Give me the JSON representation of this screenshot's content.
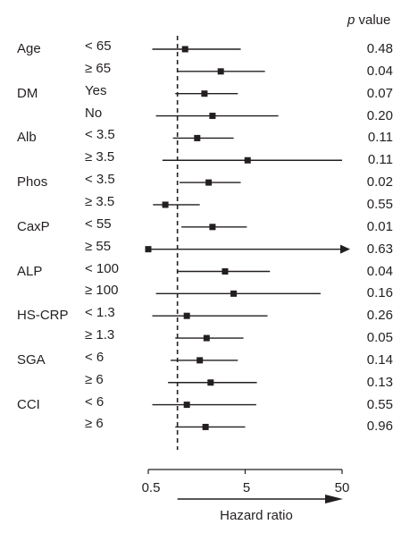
{
  "chart_data": {
    "type": "forest",
    "p_header_italic": "p",
    "p_header_rest": " value",
    "xlabel": "Hazard ratio",
    "x_scale": "log",
    "xlim": [
      0.5,
      50
    ],
    "ticks": [
      "0.5",
      "5",
      "50"
    ],
    "reference_line": 1,
    "rows": [
      {
        "group": "Age",
        "subgroup": "< 65",
        "hr": 1.2,
        "ci": [
          0.55,
          4.5
        ],
        "p": "0.48"
      },
      {
        "group": "",
        "subgroup": "≥ 65",
        "hr": 2.8,
        "ci": [
          1.0,
          8.0
        ],
        "p": "0.04"
      },
      {
        "group": "DM",
        "subgroup": "Yes",
        "hr": 1.9,
        "ci": [
          0.95,
          4.2
        ],
        "p": "0.07"
      },
      {
        "group": "",
        "subgroup": "No",
        "hr": 2.3,
        "ci": [
          0.6,
          11.0
        ],
        "p": "0.20"
      },
      {
        "group": "Alb",
        "subgroup": "< 3.5",
        "hr": 1.6,
        "ci": [
          0.9,
          3.8
        ],
        "p": "0.11"
      },
      {
        "group": "",
        "subgroup": "≥ 3.5",
        "hr": 5.3,
        "ci": [
          0.7,
          50
        ],
        "p": "0.11"
      },
      {
        "group": "Phos",
        "subgroup": "< 3.5",
        "hr": 2.1,
        "ci": [
          1.05,
          4.5
        ],
        "p": "0.02"
      },
      {
        "group": "",
        "subgroup": "≥ 3.5",
        "hr": 0.75,
        "ci": [
          0.56,
          1.7
        ],
        "p": "0.55"
      },
      {
        "group": "CaxP",
        "subgroup": "< 55",
        "hr": 2.3,
        "ci": [
          1.1,
          5.2
        ],
        "p": "0.01"
      },
      {
        "group": "",
        "subgroup": "≥ 55",
        "hr": 0.5,
        "ci": [
          0.5,
          50
        ],
        "p": "0.63",
        "arrow": true
      },
      {
        "group": "ALP",
        "subgroup": "< 100",
        "hr": 3.1,
        "ci": [
          1.0,
          9.0
        ],
        "p": "0.04"
      },
      {
        "group": "",
        "subgroup": "≥ 100",
        "hr": 3.8,
        "ci": [
          0.6,
          30
        ],
        "p": "0.16"
      },
      {
        "group": "HS-CRP",
        "subgroup": "< 1.3",
        "hr": 1.25,
        "ci": [
          0.55,
          8.5
        ],
        "p": "0.26"
      },
      {
        "group": "",
        "subgroup": "≥ 1.3",
        "hr": 2.0,
        "ci": [
          0.95,
          4.8
        ],
        "p": "0.05"
      },
      {
        "group": "SGA",
        "subgroup": "< 6",
        "hr": 1.7,
        "ci": [
          0.85,
          4.2
        ],
        "p": "0.14"
      },
      {
        "group": "",
        "subgroup": "≥ 6",
        "hr": 2.2,
        "ci": [
          0.8,
          6.6
        ],
        "p": "0.13"
      },
      {
        "group": "CCI",
        "subgroup": "< 6",
        "hr": 1.25,
        "ci": [
          0.55,
          6.5
        ],
        "p": "0.55"
      },
      {
        "group": "",
        "subgroup": "≥ 6",
        "hr": 1.95,
        "ci": [
          0.95,
          5.0
        ],
        "p": "0.96"
      }
    ]
  }
}
